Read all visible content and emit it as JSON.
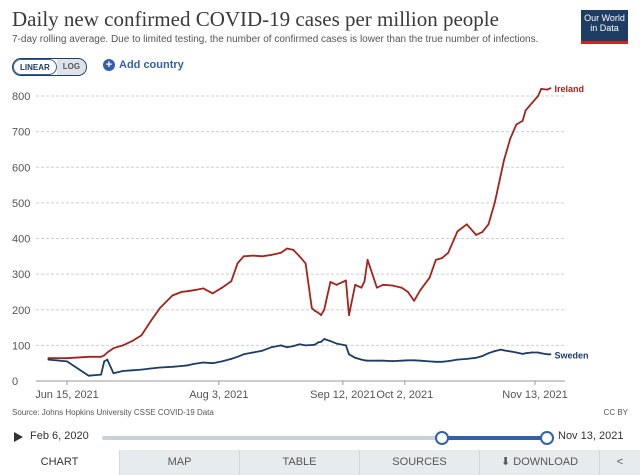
{
  "header": {
    "title": "Daily new confirmed COVID-19 cases per million people",
    "subtitle": "7-day rolling average. Due to limited testing, the number of confirmed cases is lower than the true number of infections.",
    "logo_line1": "Our World",
    "logo_line2": "in Data"
  },
  "controls": {
    "scale_linear": "LINEAR",
    "scale_log": "LOG",
    "add_country": "Add country"
  },
  "chart_data": {
    "type": "line",
    "ylim": [
      0,
      800
    ],
    "yticks": [
      "0",
      "100",
      "200",
      "300",
      "400",
      "500",
      "600",
      "700",
      "800"
    ],
    "ytick_values": [
      0,
      100,
      200,
      300,
      400,
      500,
      600,
      700,
      800
    ],
    "xlim": [
      0,
      161
    ],
    "xtick_labels": [
      "Jun 15, 2021",
      "Aug 3, 2021",
      "Sep 12, 2021",
      "Oct 2, 2021",
      "Nov 13, 2021"
    ],
    "xtick_positions": [
      0,
      49,
      89,
      109,
      151
    ],
    "x": [
      -6,
      0,
      7,
      11,
      12,
      13,
      15,
      18,
      21,
      24,
      27,
      30,
      34,
      37,
      39,
      41,
      44,
      47,
      50,
      53,
      55,
      57,
      60,
      63,
      66,
      69,
      71,
      73,
      75,
      77,
      79,
      80,
      81,
      82,
      83,
      85,
      87,
      90,
      91,
      93,
      95,
      96,
      97,
      100,
      102,
      105,
      108,
      110,
      112,
      114,
      117,
      119,
      121,
      123,
      126,
      129,
      132,
      134,
      136,
      138,
      140,
      141,
      143,
      145,
      147,
      148,
      150,
      152,
      153,
      155,
      156
    ],
    "series": [
      {
        "name": "Ireland",
        "color": "#a3241c",
        "values": [
          64,
          64,
          68,
          68,
          72,
          80,
          92,
          100,
          112,
          128,
          168,
          205,
          240,
          250,
          252,
          255,
          260,
          246,
          262,
          280,
          330,
          350,
          352,
          350,
          354,
          360,
          372,
          368,
          350,
          330,
          205,
          197,
          192,
          185,
          200,
          278,
          270,
          282,
          185,
          270,
          262,
          280,
          340,
          262,
          270,
          268,
          262,
          250,
          225,
          255,
          290,
          340,
          345,
          360,
          420,
          440,
          410,
          418,
          440,
          500,
          580,
          620,
          680,
          720,
          730,
          760,
          780,
          800,
          820,
          818,
          822
        ]
      },
      {
        "name": "Sweden",
        "color": "#1d3d63",
        "values": [
          60,
          55,
          15,
          18,
          55,
          60,
          22,
          28,
          30,
          32,
          35,
          38,
          40,
          42,
          44,
          48,
          52,
          50,
          55,
          62,
          68,
          75,
          80,
          85,
          95,
          100,
          95,
          98,
          103,
          100,
          101,
          102,
          108,
          110,
          118,
          112,
          105,
          100,
          75,
          65,
          60,
          58,
          57,
          57,
          57,
          56,
          57,
          58,
          58,
          57,
          55,
          54,
          54,
          56,
          60,
          62,
          65,
          70,
          78,
          84,
          88,
          86,
          83,
          80,
          76,
          78,
          80,
          80,
          78,
          75,
          75
        ]
      }
    ]
  },
  "footer": {
    "source": "Source: Johns Hopkins University CSSE COVID-19 Data",
    "license": "CC BY"
  },
  "timeline": {
    "start_label": "Feb 6, 2020",
    "end_label": "Nov 13, 2021"
  },
  "tabs": {
    "chart": "CHART",
    "map": "MAP",
    "table": "TABLE",
    "sources": "SOURCES",
    "download": "DOWNLOAD"
  }
}
